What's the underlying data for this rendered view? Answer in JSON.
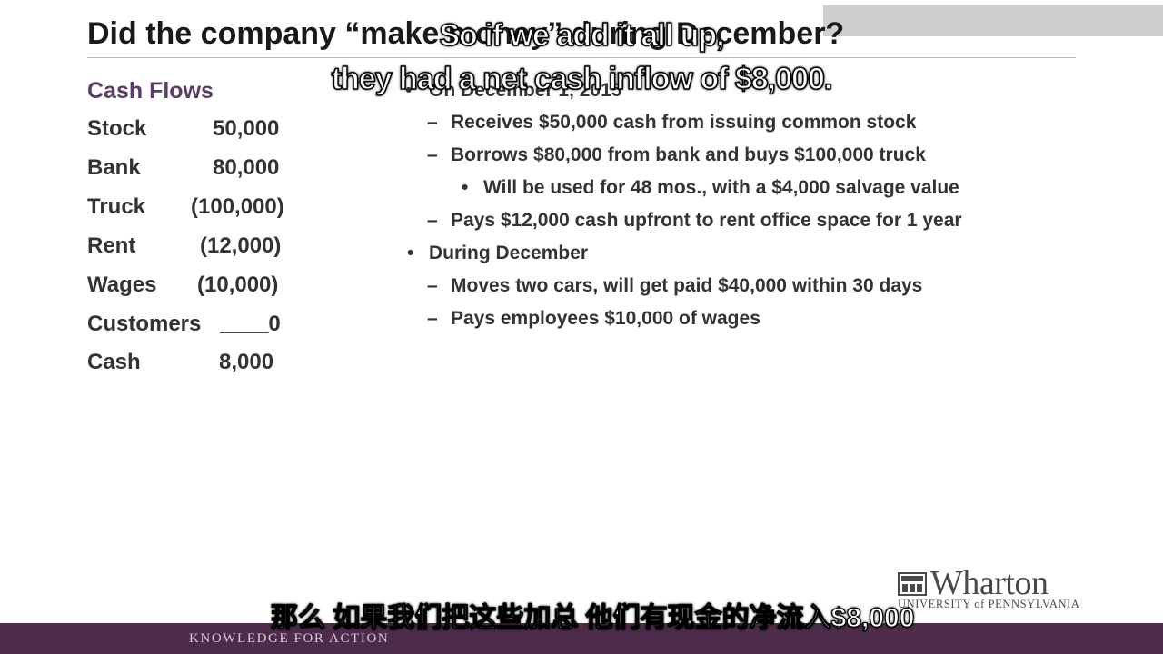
{
  "slide": {
    "title": "Did the company “make money” during December?",
    "cash_flows": {
      "heading": "Cash Flows",
      "rows": [
        {
          "label": "Stock",
          "value": "50,000"
        },
        {
          "label": "Bank",
          "value": "80,000"
        },
        {
          "label": "Truck",
          "value": "(100,000)"
        },
        {
          "label": "Rent",
          "value": "(12,000)"
        },
        {
          "label": "Wages",
          "value": "(10,000)"
        },
        {
          "label": "Customers",
          "value": "____0"
        },
        {
          "label": "Cash",
          "value": "8,000"
        }
      ]
    },
    "bullets": [
      {
        "mark": "•",
        "text": "On December 1, 2015"
      },
      {
        "mark": "–",
        "text": "Receives $50,000 cash from issuing common stock"
      },
      {
        "mark": "–",
        "text": "Borrows $80,000 from bank and buys $100,000 truck"
      },
      {
        "mark": "•",
        "text": "Will be used for 48 mos., with a $4,000 salvage value"
      },
      {
        "mark": "–",
        "text": "Pays $12,000 cash upfront to rent office space for 1 year"
      },
      {
        "mark": "•",
        "text": "During December"
      },
      {
        "mark": "–",
        "text": "Moves two cars, will get paid $40,000 within 30 days"
      },
      {
        "mark": "–",
        "text": "Pays employees $10,000 of wages"
      }
    ]
  },
  "subtitles": {
    "english_line1": "So if we add it all up,",
    "english_line2": "they had a net cash inflow of $8,000.",
    "chinese": "那么 如果我们把这些加总 他们有现金的净流入$8,000"
  },
  "branding": {
    "logo_word": "Wharton",
    "logo_sub": "UNIVERSITY of PENNSYLVANIA",
    "footer": "KNOWLEDGE FOR ACTION",
    "footer_color": "#4c2b4b",
    "heading_color": "#5a3d66"
  }
}
